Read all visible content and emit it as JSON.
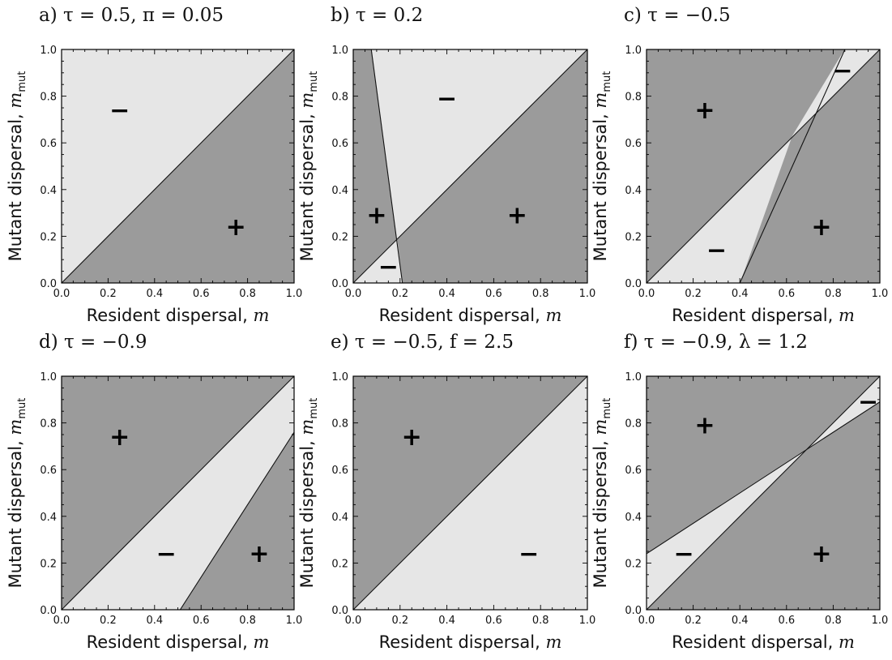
{
  "colors": {
    "light": "#e6e6e6",
    "dark": "#9b9b9b",
    "line": "#111111"
  },
  "xlabel": "Resident dispersal, m",
  "ylabel": "Mutant dispersal, m_mut",
  "chart_data": [
    {
      "type": "area",
      "title": "a) τ = 0.5, π = 0.05",
      "xlim": [
        0,
        1
      ],
      "ylim": [
        0,
        1
      ],
      "ticks": [
        0.0,
        0.2,
        0.4,
        0.6,
        0.8,
        1.0
      ],
      "tick_labels": [
        "0.0",
        "0.2",
        "0.4",
        "0.6",
        "0.8",
        "1.0"
      ],
      "regions": [
        {
          "shade": "light",
          "points": [
            [
              0,
              0
            ],
            [
              1,
              1
            ],
            [
              1,
              1
            ],
            [
              0,
              1
            ]
          ]
        },
        {
          "shade": "dark",
          "points": [
            [
              0,
              0
            ],
            [
              1,
              0
            ],
            [
              1,
              1
            ]
          ]
        }
      ],
      "lines": [
        [
          [
            0,
            0
          ],
          [
            1,
            1
          ]
        ]
      ],
      "signs": [
        {
          "text": "−",
          "x": 0.25,
          "y": 0.74
        },
        {
          "text": "+",
          "x": 0.75,
          "y": 0.24
        }
      ]
    },
    {
      "type": "area",
      "title": "b) τ = 0.2",
      "xlim": [
        0,
        1
      ],
      "ylim": [
        0,
        1
      ],
      "ticks": [
        0.0,
        0.2,
        0.4,
        0.6,
        0.8,
        1.0
      ],
      "tick_labels": [
        "0.0",
        "0.2",
        "0.4",
        "0.6",
        "0.8",
        "1.0"
      ],
      "regions": [
        {
          "shade": "dark",
          "points": [
            [
              0,
              0
            ],
            [
              1,
              0
            ],
            [
              1,
              1
            ],
            [
              0,
              1
            ]
          ]
        },
        {
          "shade": "light",
          "points": [
            [
              0.077,
              1
            ],
            [
              1,
              1
            ],
            [
              0.187,
              0.187
            ]
          ]
        },
        {
          "shade": "light",
          "points": [
            [
              0,
              0
            ],
            [
              0.21,
              0
            ],
            [
              0.187,
              0.187
            ]
          ]
        }
      ],
      "lines": [
        [
          [
            0,
            0
          ],
          [
            1,
            1
          ]
        ],
        [
          [
            0.077,
            1
          ],
          [
            0.21,
            0
          ]
        ]
      ],
      "signs": [
        {
          "text": "−",
          "x": 0.4,
          "y": 0.79
        },
        {
          "text": "+",
          "x": 0.1,
          "y": 0.29
        },
        {
          "text": "+",
          "x": 0.7,
          "y": 0.29
        },
        {
          "text": "−",
          "x": 0.15,
          "y": 0.07
        }
      ]
    },
    {
      "type": "area",
      "title": "c) τ = −0.5",
      "xlim": [
        0,
        1
      ],
      "ylim": [
        0,
        1
      ],
      "ticks": [
        0.0,
        0.2,
        0.4,
        0.6,
        0.8,
        1.0
      ],
      "tick_labels": [
        "0.0",
        "0.2",
        "0.4",
        "0.6",
        "0.8",
        "1.0"
      ],
      "regions": [
        {
          "shade": "dark",
          "points": [
            [
              0,
              0
            ],
            [
              1,
              0
            ],
            [
              1,
              1
            ],
            [
              0,
              1
            ]
          ]
        },
        {
          "shade": "light",
          "points": [
            [
              0,
              0
            ],
            [
              0.4,
              0
            ],
            [
              0.62,
              0.62
            ]
          ]
        },
        {
          "shade": "light",
          "points": [
            [
              0.62,
              0.62
            ],
            [
              0.85,
              1
            ],
            [
              1,
              1
            ]
          ]
        }
      ],
      "lines": [
        [
          [
            0,
            0
          ],
          [
            1,
            1
          ]
        ],
        [
          [
            0.4,
            0
          ],
          [
            0.85,
            1
          ]
        ]
      ],
      "signs": [
        {
          "text": "+",
          "x": 0.25,
          "y": 0.74
        },
        {
          "text": "−",
          "x": 0.84,
          "y": 0.91
        },
        {
          "text": "−",
          "x": 0.3,
          "y": 0.14
        },
        {
          "text": "+",
          "x": 0.75,
          "y": 0.24
        }
      ]
    },
    {
      "type": "area",
      "title": "d) τ = −0.9",
      "xlim": [
        0,
        1
      ],
      "ylim": [
        0,
        1
      ],
      "ticks": [
        0.0,
        0.2,
        0.4,
        0.6,
        0.8,
        1.0
      ],
      "tick_labels": [
        "0.0",
        "0.2",
        "0.4",
        "0.6",
        "0.8",
        "1.0"
      ],
      "regions": [
        {
          "shade": "dark",
          "points": [
            [
              0,
              0
            ],
            [
              1,
              0
            ],
            [
              1,
              1
            ],
            [
              0,
              1
            ]
          ]
        },
        {
          "shade": "light",
          "points": [
            [
              0,
              0
            ],
            [
              0.51,
              0
            ],
            [
              1,
              0.76
            ],
            [
              1,
              1
            ]
          ]
        }
      ],
      "lines": [
        [
          [
            0,
            0
          ],
          [
            1,
            1
          ]
        ],
        [
          [
            0.51,
            0
          ],
          [
            1,
            0.76
          ]
        ]
      ],
      "signs": [
        {
          "text": "+",
          "x": 0.25,
          "y": 0.74
        },
        {
          "text": "−",
          "x": 0.45,
          "y": 0.24
        },
        {
          "text": "+",
          "x": 0.85,
          "y": 0.24
        }
      ]
    },
    {
      "type": "area",
      "title": "e) τ = −0.5, f = 2.5",
      "xlim": [
        0,
        1
      ],
      "ylim": [
        0,
        1
      ],
      "ticks": [
        0.0,
        0.2,
        0.4,
        0.6,
        0.8,
        1.0
      ],
      "tick_labels": [
        "0.0",
        "0.2",
        "0.4",
        "0.6",
        "0.8",
        "1.0"
      ],
      "regions": [
        {
          "shade": "dark",
          "points": [
            [
              0,
              0
            ],
            [
              1,
              1
            ],
            [
              0,
              1
            ]
          ]
        },
        {
          "shade": "light",
          "points": [
            [
              0,
              0
            ],
            [
              1,
              0
            ],
            [
              1,
              1
            ]
          ]
        }
      ],
      "lines": [
        [
          [
            0,
            0
          ],
          [
            1,
            1
          ]
        ]
      ],
      "signs": [
        {
          "text": "+",
          "x": 0.25,
          "y": 0.74
        },
        {
          "text": "−",
          "x": 0.75,
          "y": 0.24
        }
      ]
    },
    {
      "type": "area",
      "title": "f) τ = −0.9, λ = 1.2",
      "xlim": [
        0,
        1
      ],
      "ylim": [
        0,
        1
      ],
      "ticks": [
        0.0,
        0.2,
        0.4,
        0.6,
        0.8,
        1.0
      ],
      "tick_labels": [
        "0.0",
        "0.2",
        "0.4",
        "0.6",
        "0.8",
        "1.0"
      ],
      "regions": [
        {
          "shade": "dark",
          "points": [
            [
              0,
              0
            ],
            [
              1,
              0
            ],
            [
              1,
              1
            ],
            [
              0,
              1
            ]
          ]
        },
        {
          "shade": "light",
          "points": [
            [
              0,
              0
            ],
            [
              0.69,
              0.69
            ],
            [
              0,
              0.24
            ]
          ]
        },
        {
          "shade": "light",
          "points": [
            [
              0.69,
              0.69
            ],
            [
              1,
              1
            ],
            [
              1,
              0.89
            ]
          ]
        }
      ],
      "lines": [
        [
          [
            0,
            0
          ],
          [
            1,
            1
          ]
        ],
        [
          [
            0,
            0.24
          ],
          [
            1,
            0.89
          ]
        ]
      ],
      "signs": [
        {
          "text": "+",
          "x": 0.25,
          "y": 0.79
        },
        {
          "text": "−",
          "x": 0.95,
          "y": 0.89
        },
        {
          "text": "−",
          "x": 0.16,
          "y": 0.24
        },
        {
          "text": "+",
          "x": 0.75,
          "y": 0.24
        }
      ]
    }
  ]
}
